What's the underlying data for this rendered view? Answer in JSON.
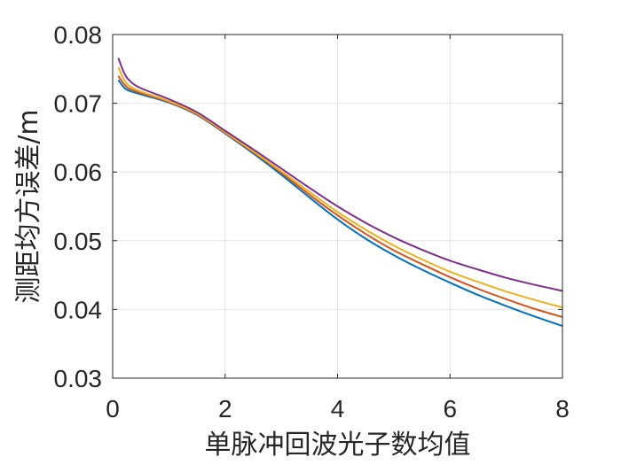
{
  "chart_data": {
    "type": "line",
    "title": "",
    "xlabel": "单脉冲回波光子数均值",
    "ylabel": "测距均方误差/m",
    "xlim": [
      0,
      8
    ],
    "ylim": [
      0.03,
      0.08
    ],
    "xticks": [
      0,
      2,
      4,
      6,
      8
    ],
    "xtick_labels": [
      "0",
      "2",
      "4",
      "6",
      "8"
    ],
    "yticks": [
      0.03,
      0.04,
      0.05,
      0.06,
      0.07,
      0.08
    ],
    "ytick_labels": [
      "0.03",
      "0.04",
      "0.05",
      "0.06",
      "0.07",
      "0.08"
    ],
    "grid": true,
    "legend": "none",
    "series": [
      {
        "color": "#0072BD",
        "x": [
          0.1,
          0.2,
          0.3,
          0.5,
          1.0,
          1.5,
          2.0,
          2.5,
          3.0,
          3.5,
          4.0,
          4.5,
          5.0,
          5.5,
          6.0,
          6.5,
          7.0,
          7.5,
          8.0
        ],
        "y": [
          0.0734,
          0.0723,
          0.0718,
          0.0713,
          0.0701,
          0.0683,
          0.0656,
          0.0627,
          0.0596,
          0.0563,
          0.0531,
          0.0503,
          0.0479,
          0.0458,
          0.0439,
          0.0421,
          0.0405,
          0.039,
          0.0376
        ]
      },
      {
        "color": "#D95319",
        "x": [
          0.1,
          0.2,
          0.3,
          0.5,
          1.0,
          1.5,
          2.0,
          2.5,
          3.0,
          3.5,
          4.0,
          4.5,
          5.0,
          5.5,
          6.0,
          6.5,
          7.0,
          7.5,
          8.0
        ],
        "y": [
          0.074,
          0.0728,
          0.0721,
          0.0715,
          0.0702,
          0.0684,
          0.0657,
          0.0629,
          0.0599,
          0.0567,
          0.0537,
          0.051,
          0.0486,
          0.0466,
          0.0447,
          0.043,
          0.0415,
          0.0401,
          0.0389
        ]
      },
      {
        "color": "#EDB120",
        "x": [
          0.1,
          0.2,
          0.3,
          0.5,
          1.0,
          1.5,
          2.0,
          2.5,
          3.0,
          3.5,
          4.0,
          4.5,
          5.0,
          5.5,
          6.0,
          6.5,
          7.0,
          7.5,
          8.0
        ],
        "y": [
          0.0752,
          0.0735,
          0.0725,
          0.0717,
          0.0703,
          0.0685,
          0.0658,
          0.063,
          0.0601,
          0.0571,
          0.0542,
          0.0516,
          0.0493,
          0.0473,
          0.0455,
          0.044,
          0.0426,
          0.0414,
          0.0403
        ]
      },
      {
        "color": "#7E2F8E",
        "x": [
          0.1,
          0.2,
          0.3,
          0.5,
          1.0,
          1.5,
          2.0,
          2.5,
          3.0,
          3.5,
          4.0,
          4.5,
          5.0,
          5.5,
          6.0,
          6.5,
          7.0,
          7.5,
          8.0
        ],
        "y": [
          0.0766,
          0.0745,
          0.0733,
          0.0722,
          0.0706,
          0.0687,
          0.066,
          0.0633,
          0.0605,
          0.0577,
          0.055,
          0.0526,
          0.0505,
          0.0487,
          0.0471,
          0.0458,
          0.0446,
          0.0436,
          0.0427
        ]
      }
    ]
  }
}
